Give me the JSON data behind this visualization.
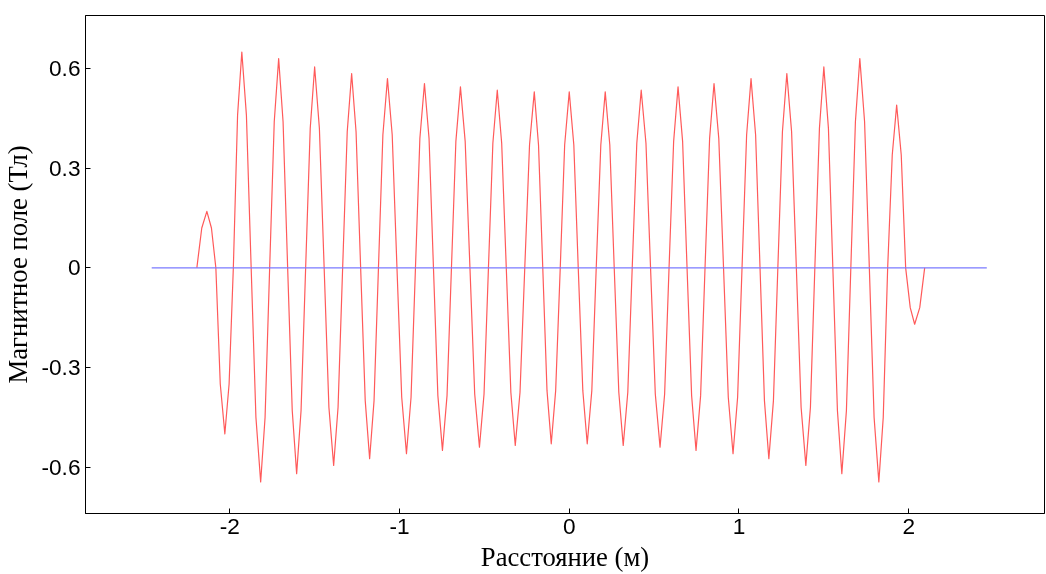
{
  "chart_data": {
    "type": "line",
    "xlabel": "Расстояние (м)",
    "ylabel": "Магнитное поле (Тл)",
    "xlim": [
      -2.85,
      2.8
    ],
    "ylim": [
      -0.74,
      0.76
    ],
    "xticks": [
      -2,
      -1,
      0,
      1,
      2
    ],
    "yticks": [
      -0.6,
      -0.3,
      0,
      0.3,
      0.6
    ],
    "grid": false,
    "marker": "none",
    "line_style": "solid",
    "series": [
      {
        "color": "#ff5a5a",
        "x": [
          -2.194,
          -2.165,
          -2.135,
          -2.108,
          -2.082,
          -2.056,
          -2.029,
          -2.004,
          -1.979,
          -1.954,
          -1.929,
          -1.902,
          -1.874,
          -1.846,
          -1.818,
          -1.792,
          -1.765,
          -1.738,
          -1.712,
          -1.686,
          -1.659,
          -1.632,
          -1.606,
          -1.58,
          -1.553,
          -1.526,
          -1.5,
          -1.472,
          -1.444,
          -1.416,
          -1.388,
          -1.362,
          -1.335,
          -1.308,
          -1.282,
          -1.256,
          -1.229,
          -1.202,
          -1.176,
          -1.15,
          -1.124,
          -1.098,
          -1.071,
          -1.043,
          -1.015,
          -0.987,
          -0.959,
          -0.932,
          -0.906,
          -0.88,
          -0.853,
          -0.826,
          -0.8,
          -0.774,
          -0.747,
          -0.72,
          -0.694,
          -0.668,
          -0.641,
          -0.613,
          -0.585,
          -0.557,
          -0.529,
          -0.502,
          -0.476,
          -0.45,
          -0.424,
          -0.398,
          -0.371,
          -0.344,
          -0.318,
          -0.29,
          -0.262,
          -0.234,
          -0.206,
          -0.181,
          -0.156,
          -0.131,
          -0.106,
          -0.08,
          -0.053,
          -0.027,
          0,
          0.027,
          0.053,
          0.08,
          0.106,
          0.133,
          0.159,
          0.186,
          0.212,
          0.239,
          0.265,
          0.292,
          0.318,
          0.345,
          0.371,
          0.398,
          0.424,
          0.452,
          0.479,
          0.507,
          0.535,
          0.562,
          0.588,
          0.615,
          0.641,
          0.668,
          0.694,
          0.721,
          0.747,
          0.774,
          0.8,
          0.827,
          0.853,
          0.881,
          0.909,
          0.937,
          0.965,
          0.992,
          1.018,
          1.045,
          1.071,
          1.098,
          1.124,
          1.15,
          1.176,
          1.203,
          1.229,
          1.256,
          1.282,
          1.31,
          1.338,
          1.366,
          1.394,
          1.421,
          1.447,
          1.474,
          1.5,
          1.527,
          1.553,
          1.58,
          1.606,
          1.633,
          1.659,
          1.686,
          1.712,
          1.74,
          1.768,
          1.796,
          1.824,
          1.85,
          1.876,
          1.903,
          1.929,
          1.956,
          1.982,
          2.009,
          2.035,
          2.065,
          2.094
        ],
        "values": [
          0,
          0.12,
          0.17,
          0.12,
          0,
          -0.35,
          -0.5,
          -0.35,
          0,
          0.46,
          0.65,
          0.46,
          0,
          -0.45,
          -0.645,
          -0.45,
          0,
          0.44,
          0.63,
          0.44,
          0,
          -0.43,
          -0.62,
          -0.43,
          0,
          0.42,
          0.605,
          0.42,
          0,
          -0.42,
          -0.595,
          -0.42,
          0,
          0.41,
          0.585,
          0.41,
          0,
          -0.4,
          -0.575,
          -0.4,
          0,
          0.4,
          0.57,
          0.4,
          0,
          -0.39,
          -0.56,
          -0.39,
          0,
          0.39,
          0.555,
          0.39,
          0,
          -0.385,
          -0.55,
          -0.385,
          0,
          0.38,
          0.545,
          0.38,
          0,
          -0.38,
          -0.54,
          -0.38,
          0,
          0.375,
          0.535,
          0.375,
          0,
          -0.375,
          -0.535,
          -0.375,
          0,
          0.37,
          0.53,
          0.37,
          0,
          -0.37,
          -0.53,
          -0.37,
          0,
          0.37,
          0.53,
          0.37,
          0,
          -0.37,
          -0.53,
          -0.37,
          0,
          0.37,
          0.53,
          0.37,
          0,
          -0.375,
          -0.535,
          -0.375,
          0,
          0.375,
          0.535,
          0.375,
          0,
          -0.38,
          -0.54,
          -0.38,
          0,
          0.38,
          0.545,
          0.38,
          0,
          -0.385,
          -0.55,
          -0.385,
          0,
          0.39,
          0.555,
          0.39,
          0,
          -0.39,
          -0.56,
          -0.39,
          0,
          0.4,
          0.57,
          0.4,
          0,
          -0.4,
          -0.575,
          -0.4,
          0,
          0.41,
          0.585,
          0.41,
          0,
          -0.42,
          -0.595,
          -0.42,
          0,
          0.42,
          0.605,
          0.42,
          0,
          -0.43,
          -0.62,
          -0.43,
          0,
          0.44,
          0.63,
          0.44,
          0,
          -0.45,
          -0.645,
          -0.45,
          0,
          0.34,
          0.49,
          0.34,
          0,
          -0.12,
          -0.17,
          -0.12,
          0
        ]
      },
      {
        "color": "#7a7aff",
        "x": [
          -2.46,
          2.46
        ],
        "values": [
          0,
          0
        ]
      }
    ]
  }
}
